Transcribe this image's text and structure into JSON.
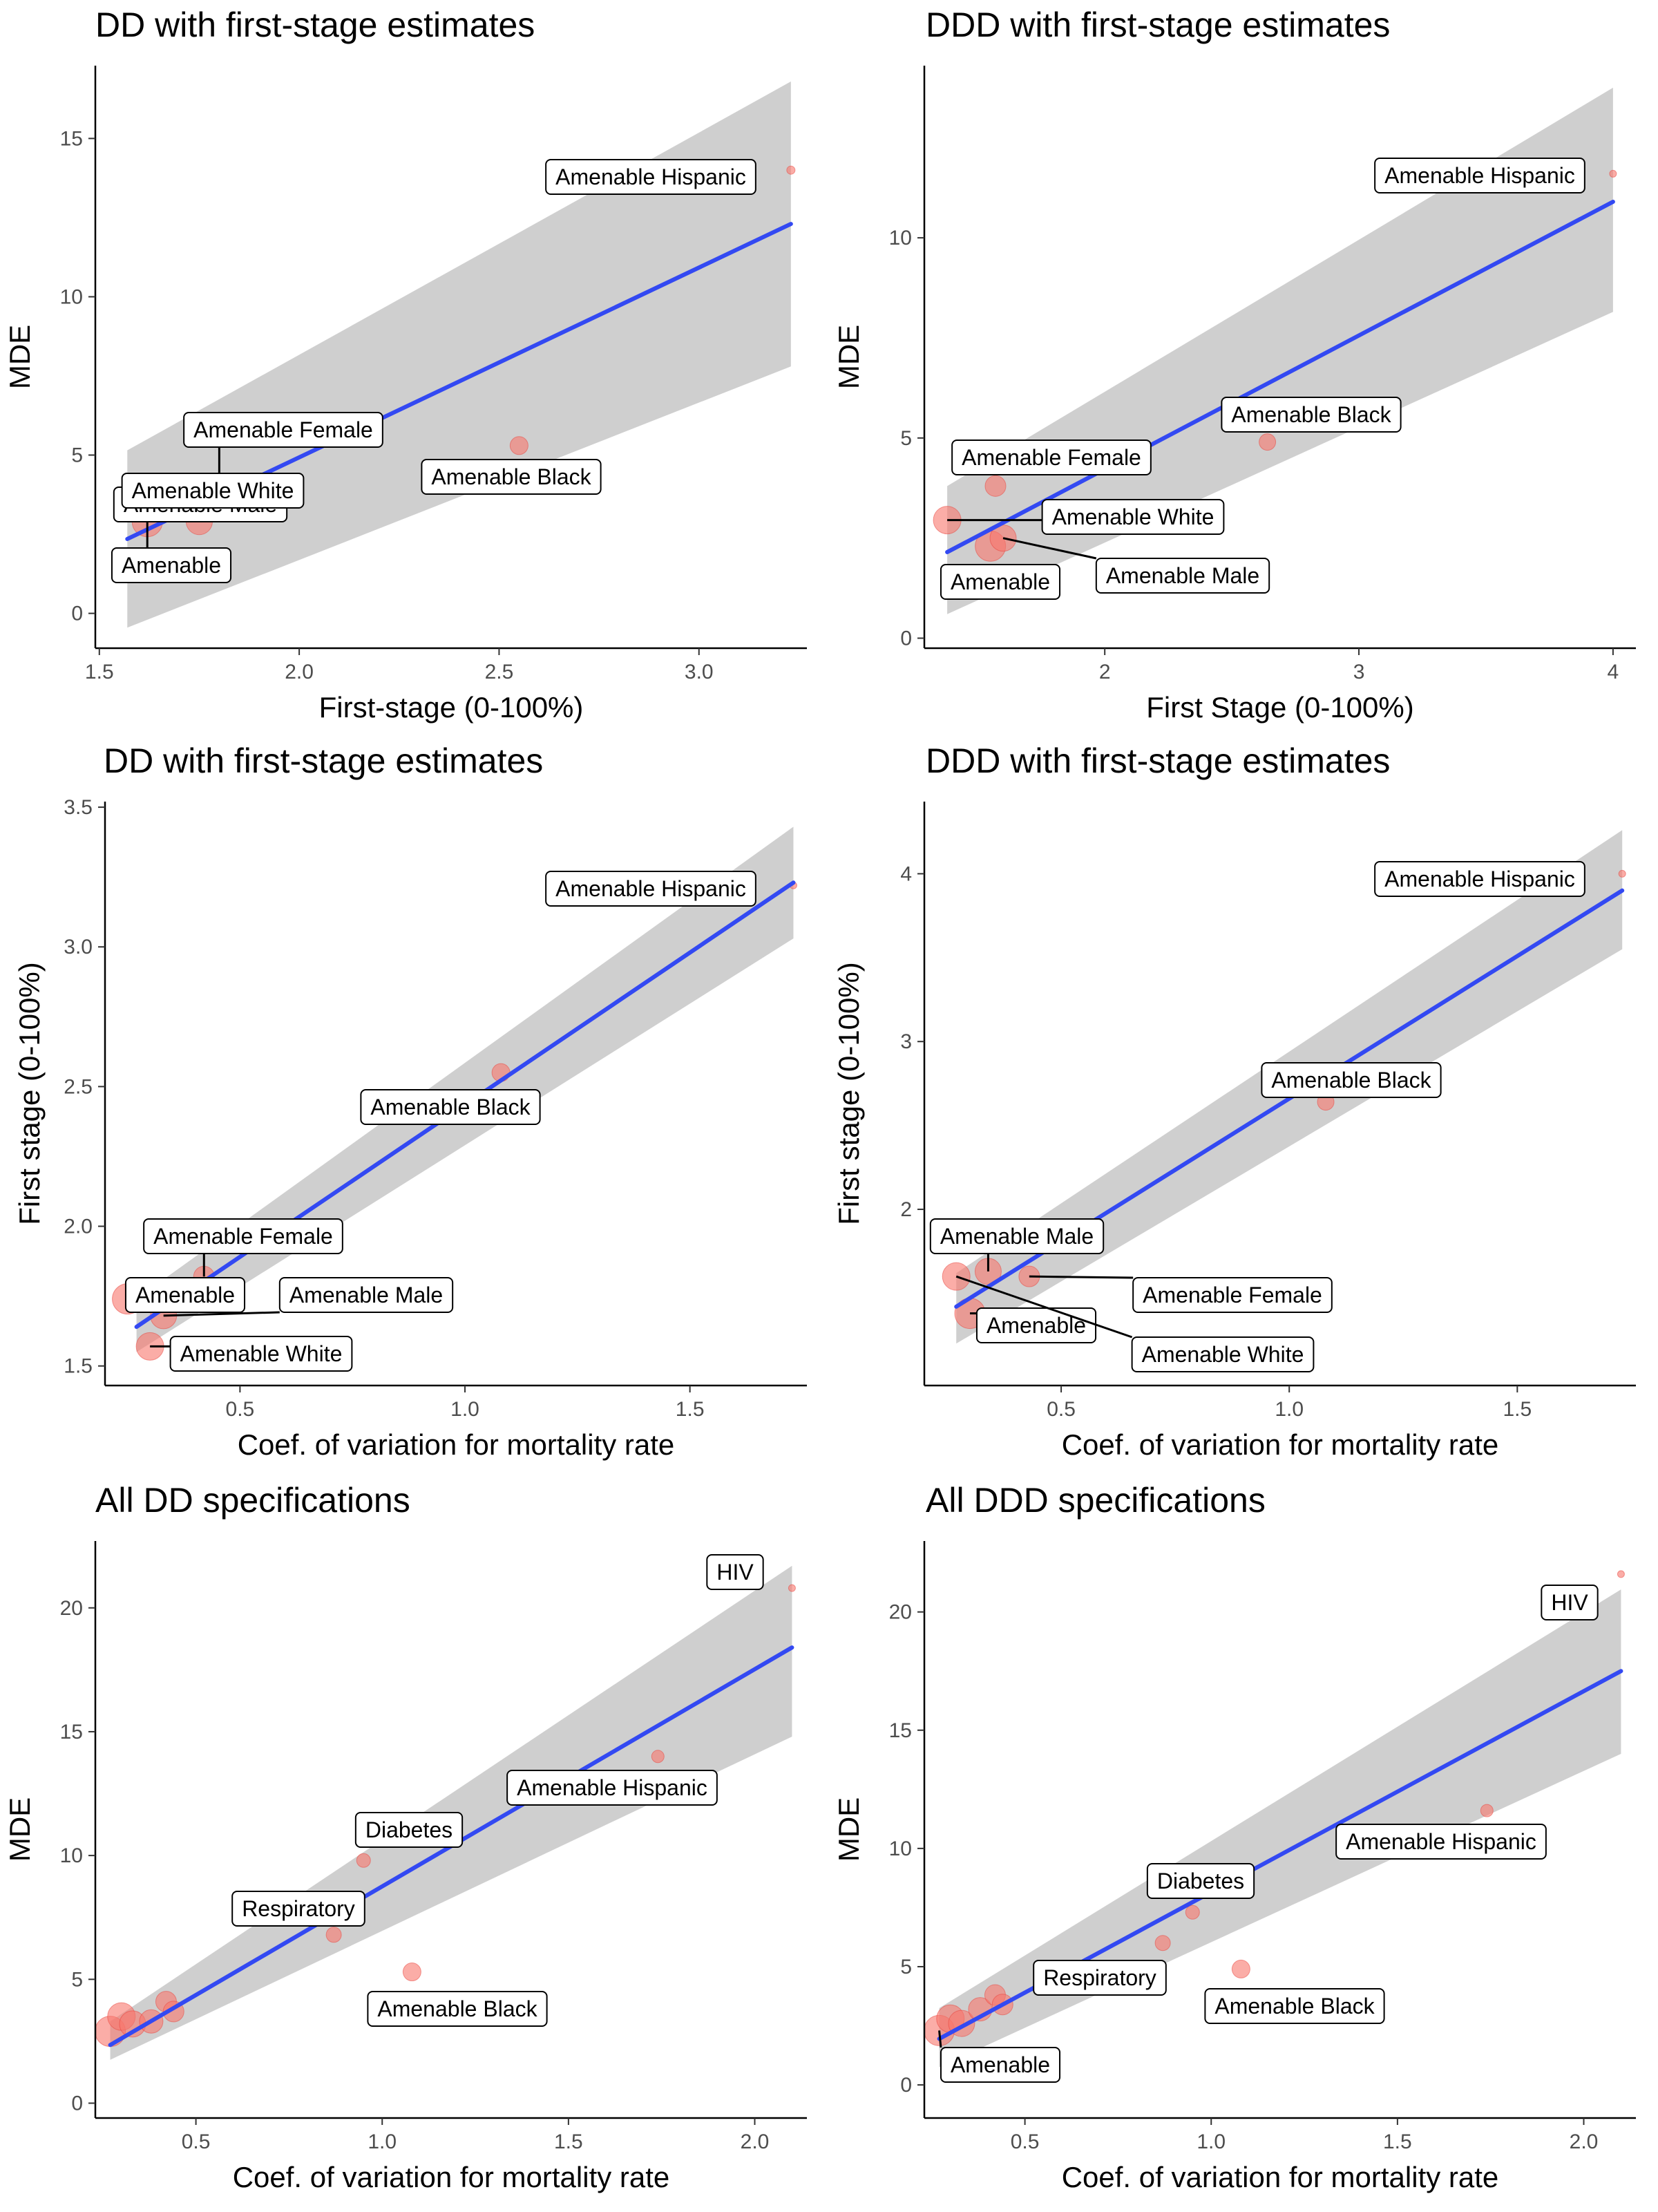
{
  "chart_data": [
    {
      "type": "scatter",
      "title": "DD with first-stage estimates",
      "xlabel": "First-stage (0-100%)",
      "ylabel": "MDE",
      "xlim": [
        1.49,
        3.27
      ],
      "ylim": [
        -1.1,
        17.3
      ],
      "xticks": [
        1.5,
        2.0,
        2.5,
        3.0
      ],
      "xtick_labels": [
        "1.5",
        "2.0",
        "2.5",
        "3.0"
      ],
      "yticks": [
        0,
        5,
        10,
        15
      ],
      "ytick_labels": [
        "0",
        "5",
        "10",
        "15"
      ],
      "points": [
        {
          "x": 1.62,
          "y": 2.9,
          "size": 22,
          "label": "Amenable"
        },
        {
          "x": 1.8,
          "y": 4.1,
          "size": 15,
          "label": "Amenable Female"
        },
        {
          "x": 1.75,
          "y": 2.9,
          "size": 19,
          "label": "Amenable Male"
        },
        {
          "x": 1.68,
          "y": 3.4,
          "size": 20,
          "label": "Amenable White"
        },
        {
          "x": 2.55,
          "y": 5.3,
          "size": 13,
          "label": "Amenable Black"
        },
        {
          "x": 3.23,
          "y": 14.0,
          "size": 6,
          "label": "Amenable Hispanic"
        }
      ],
      "fit": {
        "x0": 1.57,
        "y0": 2.35,
        "x1": 3.23,
        "y1": 12.3,
        "lo": [
          -0.45,
          7.8
        ],
        "hi": [
          5.15,
          16.8
        ]
      },
      "grid": false,
      "legend": "none"
    },
    {
      "type": "scatter",
      "title": "DDD with first-stage estimates",
      "xlabel": "First Stage (0-100%)",
      "ylabel": "MDE",
      "xlim": [
        1.29,
        4.09
      ],
      "ylim": [
        -0.25,
        14.3
      ],
      "xticks": [
        2,
        3,
        4
      ],
      "xtick_labels": [
        "2",
        "3",
        "4"
      ],
      "yticks": [
        0,
        5,
        10
      ],
      "ytick_labels": [
        "0",
        "5",
        "10"
      ],
      "points": [
        {
          "x": 1.55,
          "y": 2.3,
          "size": 22,
          "label": "Amenable"
        },
        {
          "x": 1.57,
          "y": 3.8,
          "size": 15,
          "label": "Amenable Female"
        },
        {
          "x": 1.6,
          "y": 2.5,
          "size": 19,
          "label": "Amenable Male"
        },
        {
          "x": 1.38,
          "y": 2.95,
          "size": 20,
          "label": "Amenable White"
        },
        {
          "x": 2.64,
          "y": 4.9,
          "size": 12,
          "label": "Amenable Black"
        },
        {
          "x": 4.0,
          "y": 11.6,
          "size": 5,
          "label": "Amenable Hispanic"
        }
      ],
      "fit": {
        "x0": 1.38,
        "y0": 2.15,
        "x1": 4.0,
        "y1": 10.9,
        "lo": [
          0.6,
          8.15
        ],
        "hi": [
          3.8,
          13.75
        ]
      },
      "grid": false,
      "legend": "none"
    },
    {
      "type": "scatter",
      "title": "DD with first-stage estimates",
      "xlabel": "Coef. of variation for mortality rate",
      "ylabel": "First stage (0-100%)",
      "xlim": [
        0.2,
        1.76
      ],
      "ylim": [
        1.43,
        3.52
      ],
      "xticks": [
        0.5,
        1.0,
        1.5
      ],
      "xtick_labels": [
        "0.5",
        "1.0",
        "1.5"
      ],
      "yticks": [
        1.5,
        2.0,
        2.5,
        3.0,
        3.5
      ],
      "ytick_labels": [
        "1.5",
        "2.0",
        "2.5",
        "3.0",
        "3.5"
      ],
      "points": [
        {
          "x": 0.25,
          "y": 1.74,
          "size": 22,
          "label": "Amenable"
        },
        {
          "x": 0.42,
          "y": 1.82,
          "size": 15,
          "label": "Amenable Female"
        },
        {
          "x": 0.33,
          "y": 1.68,
          "size": 19,
          "label": "Amenable Male"
        },
        {
          "x": 0.3,
          "y": 1.57,
          "size": 20,
          "label": "Amenable White"
        },
        {
          "x": 1.08,
          "y": 2.55,
          "size": 13,
          "label": "Amenable Black"
        },
        {
          "x": 1.73,
          "y": 3.22,
          "size": 5,
          "label": "Amenable Hispanic"
        }
      ],
      "fit": {
        "x0": 0.27,
        "y0": 1.64,
        "x1": 1.73,
        "y1": 3.23,
        "lo": [
          1.55,
          3.03
        ],
        "hi": [
          1.74,
          3.43
        ]
      },
      "grid": false,
      "legend": "none"
    },
    {
      "type": "scatter",
      "title": "DDD with first-stage estimates",
      "xlabel": "Coef. of variation for mortality rate",
      "ylabel": "First stage (0-100%)",
      "xlim": [
        0.2,
        1.76
      ],
      "ylim": [
        0.95,
        4.43
      ],
      "xticks": [
        0.5,
        1.0,
        1.5
      ],
      "xtick_labels": [
        "0.5",
        "1.0",
        "1.5"
      ],
      "yticks": [
        2,
        3,
        4
      ],
      "ytick_labels": [
        "2",
        "3",
        "4"
      ],
      "points": [
        {
          "x": 0.3,
          "y": 1.38,
          "size": 22,
          "label": "Amenable"
        },
        {
          "x": 0.43,
          "y": 1.6,
          "size": 15,
          "label": "Amenable Female"
        },
        {
          "x": 0.34,
          "y": 1.63,
          "size": 19,
          "label": "Amenable Male"
        },
        {
          "x": 0.27,
          "y": 1.6,
          "size": 20,
          "label": "Amenable White"
        },
        {
          "x": 1.08,
          "y": 2.64,
          "size": 12,
          "label": "Amenable Black"
        },
        {
          "x": 1.73,
          "y": 4.0,
          "size": 5,
          "label": "Amenable Hispanic"
        }
      ],
      "fit": {
        "x0": 0.27,
        "y0": 1.42,
        "x1": 1.73,
        "y1": 3.9,
        "lo": [
          1.2,
          3.55
        ],
        "hi": [
          1.62,
          4.26
        ]
      },
      "grid": false,
      "legend": "none"
    },
    {
      "type": "scatter",
      "title": "All DD specifications",
      "xlabel": "Coef. of variation for mortality rate",
      "ylabel": "MDE",
      "xlim": [
        0.23,
        2.14
      ],
      "ylim": [
        -0.6,
        22.7
      ],
      "xticks": [
        0.5,
        1.0,
        1.5,
        2.0
      ],
      "xtick_labels": [
        "0.5",
        "1.0",
        "1.5",
        "2.0"
      ],
      "yticks": [
        0,
        5,
        10,
        15,
        20
      ],
      "ytick_labels": [
        "0",
        "5",
        "10",
        "15",
        "20"
      ],
      "points": [
        {
          "x": 0.27,
          "y": 2.9,
          "size": 22,
          "label": "Amenable"
        },
        {
          "x": 0.3,
          "y": 3.5,
          "size": 20
        },
        {
          "x": 0.33,
          "y": 3.2,
          "size": 19
        },
        {
          "x": 0.38,
          "y": 3.3,
          "size": 17
        },
        {
          "x": 0.42,
          "y": 4.1,
          "size": 15
        },
        {
          "x": 0.44,
          "y": 3.7,
          "size": 15
        },
        {
          "x": 0.87,
          "y": 6.8,
          "size": 11,
          "label": "Respiratory"
        },
        {
          "x": 0.95,
          "y": 9.8,
          "size": 10,
          "label": "Diabetes"
        },
        {
          "x": 1.08,
          "y": 5.3,
          "size": 13,
          "label": "Amenable Black"
        },
        {
          "x": 1.74,
          "y": 14.0,
          "size": 9,
          "label": "Amenable Hispanic"
        },
        {
          "x": 2.1,
          "y": 20.8,
          "size": 5,
          "label": "HIV"
        }
      ],
      "fit": {
        "x0": 0.27,
        "y0": 2.35,
        "x1": 2.1,
        "y1": 18.4,
        "lo": [
          1.75,
          14.8
        ],
        "hi": [
          3.3,
          21.7
        ]
      },
      "grid": false,
      "legend": "none"
    },
    {
      "type": "scatter",
      "title": "All DDD specifications",
      "xlabel": "Coef. of variation for mortality rate",
      "ylabel": "MDE",
      "xlim": [
        0.23,
        2.14
      ],
      "ylim": [
        -1.4,
        23.0
      ],
      "xticks": [
        0.5,
        1.0,
        1.5,
        2.0
      ],
      "xtick_labels": [
        "0.5",
        "1.0",
        "1.5",
        "2.0"
      ],
      "yticks": [
        0,
        5,
        10,
        15,
        20
      ],
      "ytick_labels": [
        "0",
        "5",
        "10",
        "15",
        "20"
      ],
      "points": [
        {
          "x": 0.27,
          "y": 2.3,
          "size": 22,
          "label": "Amenable"
        },
        {
          "x": 0.3,
          "y": 2.8,
          "size": 20
        },
        {
          "x": 0.33,
          "y": 2.6,
          "size": 19
        },
        {
          "x": 0.38,
          "y": 3.2,
          "size": 17
        },
        {
          "x": 0.42,
          "y": 3.8,
          "size": 15
        },
        {
          "x": 0.44,
          "y": 3.4,
          "size": 15
        },
        {
          "x": 0.87,
          "y": 6.0,
          "size": 11,
          "label": "Respiratory"
        },
        {
          "x": 0.95,
          "y": 7.3,
          "size": 10,
          "label": "Diabetes"
        },
        {
          "x": 1.08,
          "y": 4.9,
          "size": 13,
          "label": "Amenable Black"
        },
        {
          "x": 1.74,
          "y": 11.6,
          "size": 9,
          "label": "Amenable Hispanic"
        },
        {
          "x": 2.1,
          "y": 21.6,
          "size": 5,
          "label": "HIV"
        }
      ],
      "fit": {
        "x0": 0.27,
        "y0": 1.95,
        "x1": 2.1,
        "y1": 17.5,
        "lo": [
          0.75,
          14.0
        ],
        "hi": [
          3.25,
          20.95
        ]
      },
      "grid": false,
      "legend": "none"
    }
  ]
}
